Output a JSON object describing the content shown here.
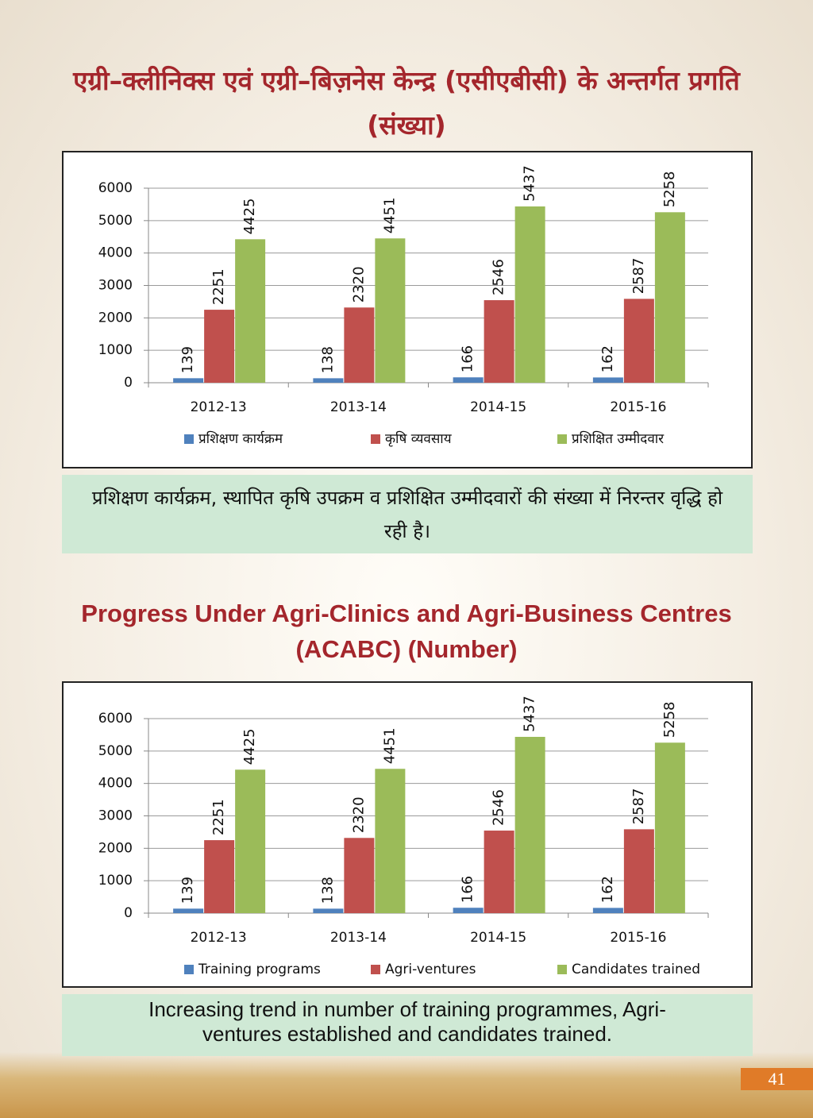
{
  "chart_data": [
    {
      "type": "bar",
      "title": "एग्री–क्लीनिक्स एवं एग्री–बिज़नेस केन्द्र (एसीएबीसी) के अन्तर्गत प्रगति (संख्या)",
      "categories": [
        "2012-13",
        "2013-14",
        "2014-15",
        "2015-16"
      ],
      "series": [
        {
          "name": "प्रशिक्षण कार्यक्रम",
          "color": "#4f81bd",
          "values": [
            139,
            138,
            166,
            162
          ]
        },
        {
          "name": "कृषि व्यवसाय",
          "color": "#c0504d",
          "values": [
            2251,
            2320,
            2546,
            2587
          ]
        },
        {
          "name": "प्रशिक्षित उम्मीदवार",
          "color": "#9bbb59",
          "values": [
            4425,
            4451,
            5437,
            5258
          ]
        }
      ],
      "ylim": [
        0,
        6000
      ],
      "yticks": [
        0,
        1000,
        2000,
        3000,
        4000,
        5000,
        6000
      ],
      "grid": true,
      "legend": "bottom",
      "caption": "प्रशिक्षण कार्यक्रम, स्थापित कृषि उपक्रम व प्रशिक्षित उम्मीदवारों की संख्या में निरन्तर वृद्धि हो रही है।"
    },
    {
      "type": "bar",
      "title": "Progress Under Agri-Clinics and Agri-Business Centres (ACABC) (Number)",
      "categories": [
        "2012-13",
        "2013-14",
        "2014-15",
        "2015-16"
      ],
      "series": [
        {
          "name": "Training programs",
          "color": "#4f81bd",
          "values": [
            139,
            138,
            166,
            162
          ]
        },
        {
          "name": "Agri-ventures",
          "color": "#c0504d",
          "values": [
            2251,
            2320,
            2546,
            2587
          ]
        },
        {
          "name": "Candidates trained",
          "color": "#9bbb59",
          "values": [
            4425,
            4451,
            5437,
            5258
          ]
        }
      ],
      "ylim": [
        0,
        6000
      ],
      "yticks": [
        0,
        1000,
        2000,
        3000,
        4000,
        5000,
        6000
      ],
      "grid": true,
      "legend": "bottom",
      "caption": "Increasing trend in number of training programmes, Agri-ventures established and candidates trained."
    }
  ],
  "page_number": "41"
}
